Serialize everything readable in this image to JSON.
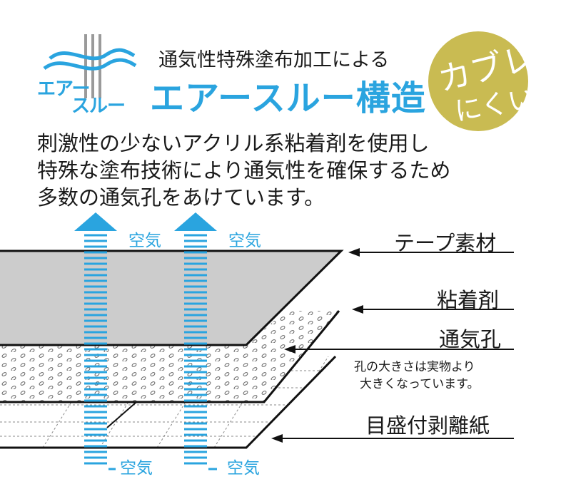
{
  "header": {
    "logo_line1": "エアー",
    "logo_line2": "スルー",
    "subtitle": "通気性特殊塗布加工による",
    "title": "エアースルー構造",
    "badge_line1": "カブレ",
    "badge_line2": "にくい"
  },
  "description": [
    "刺激性の少ないアクリル系粘着剤を使用し",
    "特殊な塗布技術により通気性を確保するため",
    "多数の通気孔をあけています。"
  ],
  "diagram": {
    "labels": {
      "tape": "テープ素材",
      "adhesive": "粘着剤",
      "vent_hole": "通気孔",
      "note_line1": "孔の大きさは実物より",
      "note_line2": "大きくなっています。",
      "release_paper": "目盛付剥離紙"
    },
    "air_label": "空気",
    "colors": {
      "accent_blue": "#2aa4df",
      "tape_gray": "#cccccc",
      "badge_gold": "#c9bb52"
    }
  }
}
